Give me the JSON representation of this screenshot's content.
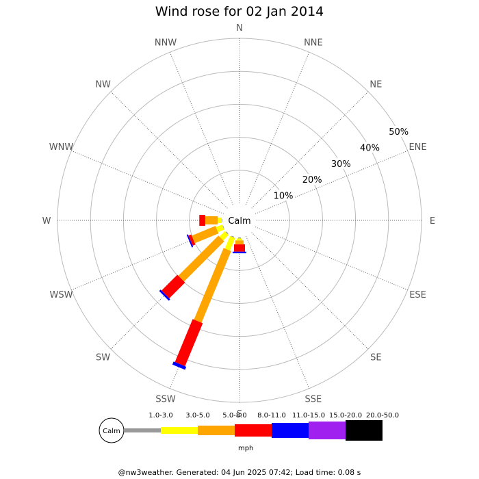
{
  "chart_data": {
    "type": "wind-rose",
    "title": "Wind rose for 02 Jan 2014",
    "directions": [
      "N",
      "NNE",
      "NE",
      "ENE",
      "E",
      "ESE",
      "SE",
      "SSE",
      "S",
      "SSW",
      "SW",
      "WSW",
      "W",
      "WNW",
      "NW",
      "NNW"
    ],
    "rings_pct": [
      10,
      20,
      30,
      40,
      50
    ],
    "ring_labels": [
      "10%",
      "20%",
      "30%",
      "40%",
      "50%"
    ],
    "center_label": "Calm",
    "speed_bins": [
      {
        "label": "1.0-3.0",
        "color": "#999999"
      },
      {
        "label": "3.0-5.0",
        "color": "#ffff00"
      },
      {
        "label": "5.0-8.0",
        "color": "#ffa500"
      },
      {
        "label": "8.0-11.0",
        "color": "#ff0000"
      },
      {
        "label": "11.0-15.0",
        "color": "#0000ff"
      },
      {
        "label": "15.0-20.0",
        "color": "#a020f0"
      },
      {
        "label": "20.0-50.0",
        "color": "#000000"
      }
    ],
    "units": "mph",
    "series": [
      {
        "direction": "S",
        "values": [
          0.3,
          0.6,
          1.2,
          2.2,
          0.5,
          0,
          0
        ]
      },
      {
        "direction": "SSW",
        "values": [
          0.3,
          4.1,
          23.5,
          14.1,
          1.0,
          0,
          0
        ]
      },
      {
        "direction": "SW",
        "values": [
          0.3,
          2.3,
          17.2,
          6.8,
          0.6,
          0,
          0
        ]
      },
      {
        "direction": "WSW",
        "values": [
          0.2,
          2.0,
          7.8,
          0.9,
          0.4,
          0,
          0
        ]
      },
      {
        "direction": "W",
        "values": [
          0.2,
          1.2,
          3.8,
          1.8,
          0,
          0,
          0
        ]
      }
    ]
  },
  "footer": "@nw3weather. Generated: 04 Jun 2025 07:42; Load time: 0.08 s"
}
